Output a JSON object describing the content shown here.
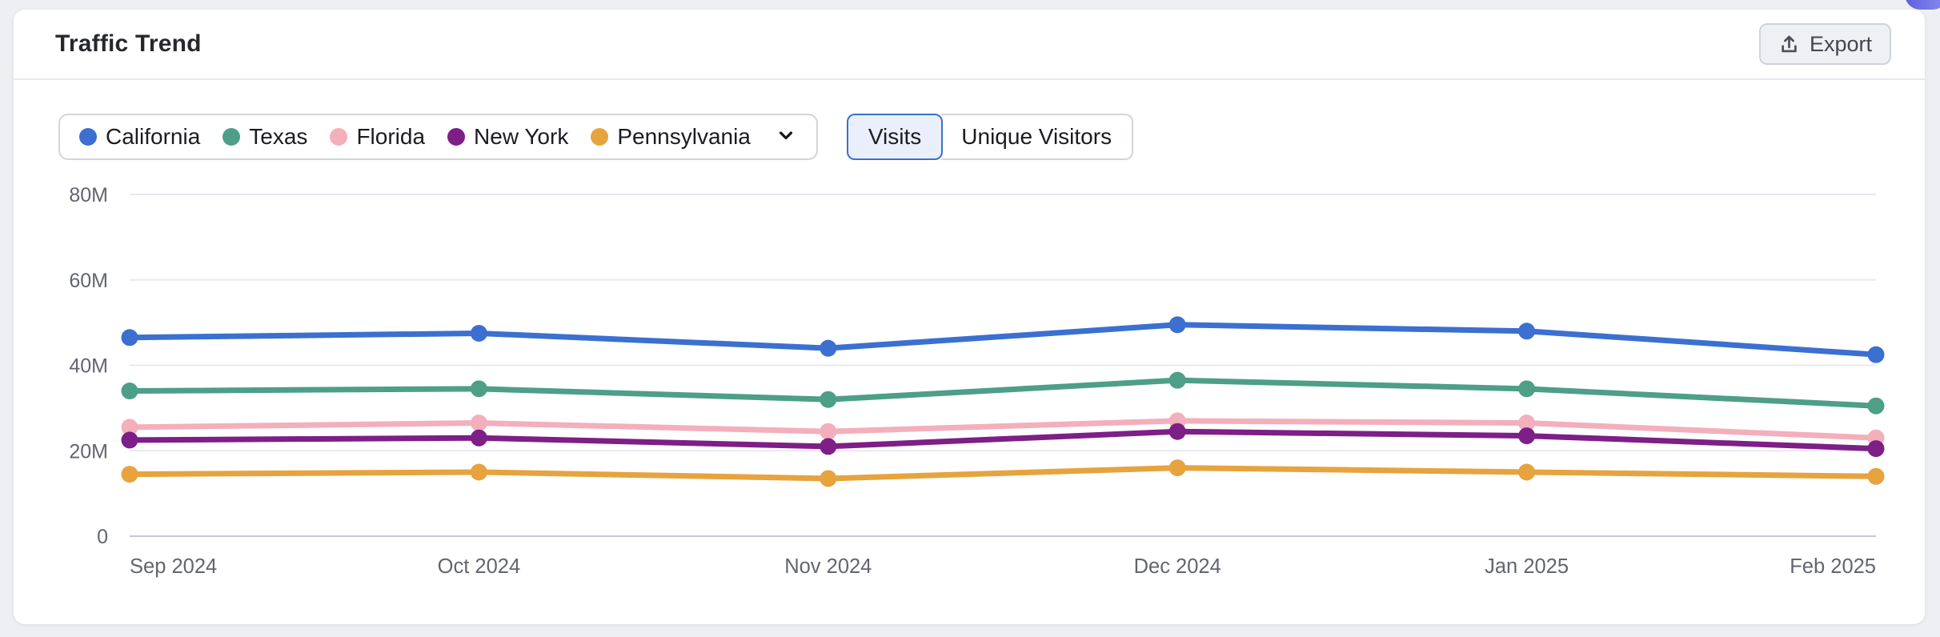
{
  "page": {
    "background": "#edeff3"
  },
  "card": {
    "title": "Traffic Trend",
    "export_button": {
      "label": "Export",
      "icon": "upload-icon"
    }
  },
  "legend": {
    "items": [
      {
        "label": "California",
        "color": "#3b70d0"
      },
      {
        "label": "Texas",
        "color": "#4d9f87"
      },
      {
        "label": "Florida",
        "color": "#f3afbb"
      },
      {
        "label": "New York",
        "color": "#7d1f86"
      },
      {
        "label": "Pennsylvania",
        "color": "#e6a33e"
      }
    ],
    "expand_icon": "chevron-down-icon"
  },
  "metric_toggle": {
    "options": [
      {
        "label": "Visits",
        "selected": true
      },
      {
        "label": "Unique Visitors",
        "selected": false
      }
    ]
  },
  "chart_data": {
    "type": "line",
    "title": "Traffic Trend",
    "xlabel": "",
    "ylabel": "",
    "unit": "M visits",
    "categories": [
      "Sep 2024",
      "Oct 2024",
      "Nov 2024",
      "Dec 2024",
      "Jan 2025",
      "Feb 2025"
    ],
    "y_tick_values": [
      80,
      60,
      40,
      20,
      0
    ],
    "y_tick_labels": [
      "80M",
      "60M",
      "40M",
      "20M",
      "0"
    ],
    "ylim": [
      0,
      80
    ],
    "grid": true,
    "legend_position": "top",
    "series": [
      {
        "name": "California",
        "color": "#3b70d0",
        "values": [
          46.5,
          47.5,
          44.0,
          49.5,
          48.0,
          42.5
        ]
      },
      {
        "name": "Texas",
        "color": "#4d9f87",
        "values": [
          34.0,
          34.5,
          32.0,
          36.5,
          34.5,
          30.5
        ]
      },
      {
        "name": "Florida",
        "color": "#f3afbb",
        "values": [
          25.5,
          26.5,
          24.5,
          27.0,
          26.5,
          23.0
        ]
      },
      {
        "name": "New York",
        "color": "#7d1f86",
        "values": [
          22.5,
          23.0,
          21.0,
          24.5,
          23.5,
          20.5
        ]
      },
      {
        "name": "Pennsylvania",
        "color": "#e6a33e",
        "values": [
          14.5,
          15.0,
          13.5,
          16.0,
          15.0,
          14.0
        ]
      }
    ],
    "colors": {
      "gridline": "#e7e9ee",
      "baseline": "#c6c9d1",
      "axis_text": "#63656f"
    }
  }
}
